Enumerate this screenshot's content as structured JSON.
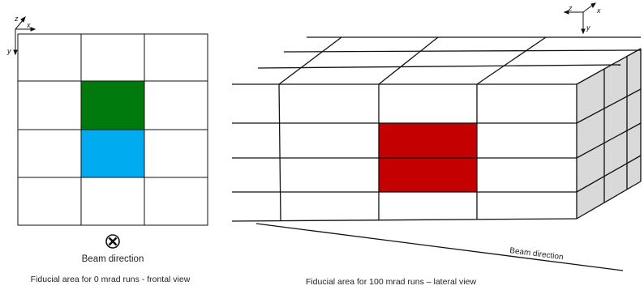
{
  "frontal_view": {
    "axes": {
      "x": "x",
      "y": "y",
      "z": "z"
    },
    "grid_rows": 4,
    "grid_cols": 3,
    "highlighted_cells": [
      {
        "row": 1,
        "col": 1,
        "color": "#007a0c"
      },
      {
        "row": 2,
        "col": 1,
        "color": "#00acef"
      }
    ],
    "beam_symbol": "beam-into-page-icon",
    "beam_label": "Beam direction",
    "caption": "Fiducial area for 0 mrad runs - frontal view"
  },
  "lateral_view": {
    "axes": {
      "x": "x",
      "y": "y",
      "z": "z"
    },
    "grid_rows": 4,
    "grid_cols": 3,
    "highlighted_cells": [
      {
        "row": 1,
        "col": 1,
        "color": "#c40000"
      },
      {
        "row": 2,
        "col": 1,
        "color": "#c40000"
      }
    ],
    "side_face_color": "#d9d9d9",
    "beam_label": "Beam direction",
    "caption": "Fiducial area for 100 mrad runs – lateral view"
  }
}
